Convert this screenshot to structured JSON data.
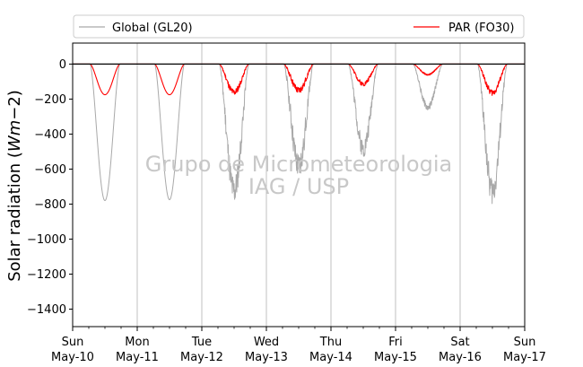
{
  "chart_data": {
    "type": "line",
    "title": "",
    "xlabel": "",
    "ylabel": "Solar radiation (",
    "ylabel_math": "Wm",
    "ylabel_suffix": "−2)",
    "ylim": [
      -1500,
      120
    ],
    "yticks": [
      0,
      -200,
      -400,
      -600,
      -800,
      -1000,
      -1200,
      -1400
    ],
    "xlim": [
      "2015-05-10",
      "2015-05-17"
    ],
    "xticks": [
      {
        "day": "Sun",
        "date": "May-10"
      },
      {
        "day": "Mon",
        "date": "May-11"
      },
      {
        "day": "Tue",
        "date": "May-12"
      },
      {
        "day": "Wed",
        "date": "May-13"
      },
      {
        "day": "Thu",
        "date": "May-14"
      },
      {
        "day": "Fri",
        "date": "May-15"
      },
      {
        "day": "Sat",
        "date": "May-16"
      },
      {
        "day": "Sun",
        "date": "May-17"
      }
    ],
    "grid": "vertical",
    "legend_position": "top",
    "watermark": [
      "Grupo de Micrometeorologia",
      "IAG / USP"
    ],
    "series": [
      {
        "name": "Global (GL20)",
        "color": "#a9a9a9",
        "daily_min": [
          -780,
          -775,
          -810,
          -660,
          -530,
          -265,
          -800
        ],
        "daily_noise": [
          0,
          0,
          0.35,
          0.4,
          0.35,
          0.25,
          0.35
        ]
      },
      {
        "name": "PAR (FO30)",
        "color": "#ff0000",
        "daily_min": [
          -175,
          -175,
          -180,
          -170,
          -125,
          -65,
          -180
        ],
        "daily_noise": [
          0,
          0,
          0.35,
          0.4,
          0.35,
          0.25,
          0.35
        ]
      }
    ],
    "zero_line_color": "#000000"
  }
}
